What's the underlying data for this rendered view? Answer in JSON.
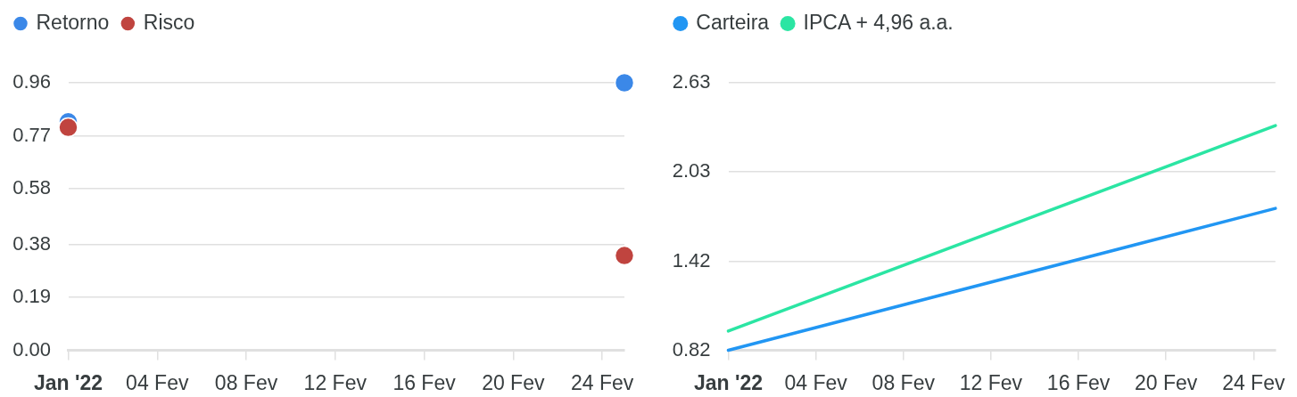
{
  "chart_data": [
    {
      "type": "scatter",
      "x": [
        "2022-01-31",
        "2022-02-25"
      ],
      "series": [
        {
          "name": "Retorno",
          "color": "#3b88e8",
          "values": [
            0.82,
            0.96
          ]
        },
        {
          "name": "Risco",
          "color": "#c0443f",
          "values": [
            0.8,
            0.34
          ]
        }
      ],
      "xlim": [
        "2022-01-31",
        "2022-02-25"
      ],
      "xticks": [
        {
          "value": "2022-01-31",
          "label": "Jan '22"
        },
        {
          "value": "2022-02-04",
          "label": "04 Fev"
        },
        {
          "value": "2022-02-08",
          "label": "08 Fev"
        },
        {
          "value": "2022-02-12",
          "label": "12 Fev"
        },
        {
          "value": "2022-02-16",
          "label": "16 Fev"
        },
        {
          "value": "2022-02-20",
          "label": "20 Fev"
        },
        {
          "value": "2022-02-24",
          "label": "24 Fev"
        }
      ],
      "ylim": [
        0,
        0.96
      ],
      "yticks": [
        {
          "value": 0,
          "label": "0.00"
        },
        0.19,
        0.38,
        0.58,
        0.77,
        0.96
      ],
      "grid": "y",
      "legend": "top left",
      "marker": "circle"
    },
    {
      "type": "line",
      "x": [
        "2022-01-31",
        "2022-02-25"
      ],
      "series": [
        {
          "name": "Carteira",
          "color": "#2196f3",
          "values": [
            0.82,
            1.78
          ]
        },
        {
          "name": "IPCA + 4,96 a.a.",
          "color": "#2be5a3",
          "values": [
            0.95,
            2.34
          ]
        }
      ],
      "xlim": [
        "2022-01-31",
        "2022-02-25"
      ],
      "xticks": [
        {
          "value": "2022-01-31",
          "label": "Jan '22"
        },
        {
          "value": "2022-02-04",
          "label": "04 Fev"
        },
        {
          "value": "2022-02-08",
          "label": "08 Fev"
        },
        {
          "value": "2022-02-12",
          "label": "12 Fev"
        },
        {
          "value": "2022-02-16",
          "label": "16 Fev"
        },
        {
          "value": "2022-02-20",
          "label": "20 Fev"
        },
        {
          "value": "2022-02-24",
          "label": "24 Fev"
        }
      ],
      "ylim": [
        0.82,
        2.63
      ],
      "yticks": [
        0.82,
        1.42,
        2.03,
        2.63
      ],
      "grid": "y",
      "legend": "top left",
      "marker": "none"
    }
  ]
}
